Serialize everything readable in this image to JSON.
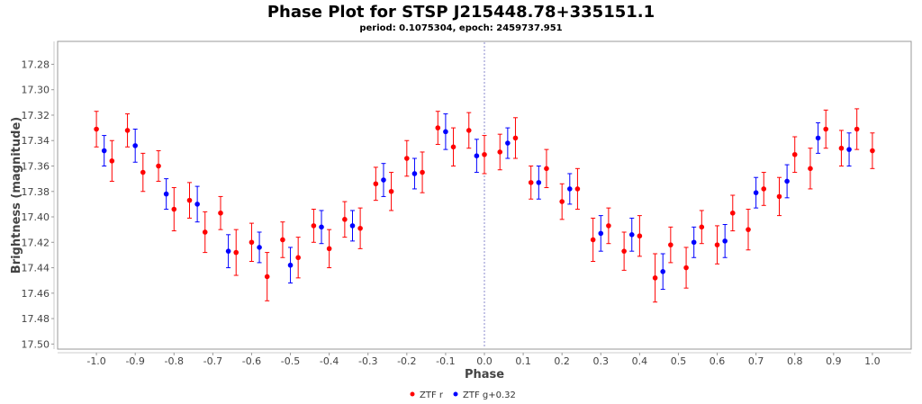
{
  "chart_data": {
    "type": "scatter",
    "title": "Phase Plot for STSP J215448.78+335151.1",
    "subtitle": "period: 0.1075304, epoch: 2459737.951",
    "xlabel": "Phase",
    "ylabel": "Brightness (magnitude)",
    "xlim": [
      -1.1,
      1.1
    ],
    "ylim": [
      17.262,
      17.504
    ],
    "y_inverted": true,
    "xticks": [
      "-1.0",
      "-0.9",
      "-0.8",
      "-0.7",
      "-0.6",
      "-0.5",
      "-0.4",
      "-0.3",
      "-0.2",
      "-0.1",
      "0.0",
      "0.1",
      "0.2",
      "0.3",
      "0.4",
      "0.5",
      "0.6",
      "0.7",
      "0.8",
      "0.9",
      "1.0"
    ],
    "yticks": [
      "17.28",
      "17.30",
      "17.32",
      "17.34",
      "17.36",
      "17.38",
      "17.40",
      "17.42",
      "17.44",
      "17.46",
      "17.48",
      "17.50"
    ],
    "grid": false,
    "reference_line_x": 0.0,
    "legend_position": "bottom-center",
    "series": [
      {
        "name": "ZTF r",
        "color": "#ff0000",
        "points": [
          [
            -1.0,
            17.331,
            0.014
          ],
          [
            -0.96,
            17.356,
            0.016
          ],
          [
            -0.92,
            17.332,
            0.013
          ],
          [
            -0.88,
            17.365,
            0.015
          ],
          [
            -0.84,
            17.36,
            0.012
          ],
          [
            -0.8,
            17.394,
            0.017
          ],
          [
            -0.76,
            17.387,
            0.014
          ],
          [
            -0.72,
            17.412,
            0.016
          ],
          [
            -0.68,
            17.397,
            0.013
          ],
          [
            -0.64,
            17.428,
            0.018
          ],
          [
            -0.6,
            17.42,
            0.015
          ],
          [
            -0.56,
            17.447,
            0.019
          ],
          [
            -0.52,
            17.418,
            0.014
          ],
          [
            -0.48,
            17.432,
            0.016
          ],
          [
            -0.44,
            17.407,
            0.013
          ],
          [
            -0.4,
            17.425,
            0.015
          ],
          [
            -0.36,
            17.402,
            0.014
          ],
          [
            -0.32,
            17.409,
            0.016
          ],
          [
            -0.28,
            17.374,
            0.013
          ],
          [
            -0.24,
            17.38,
            0.015
          ],
          [
            -0.2,
            17.354,
            0.014
          ],
          [
            -0.16,
            17.365,
            0.016
          ],
          [
            -0.12,
            17.33,
            0.013
          ],
          [
            -0.08,
            17.345,
            0.015
          ],
          [
            -0.04,
            17.332,
            0.014
          ],
          [
            0.0,
            17.351,
            0.015
          ],
          [
            0.04,
            17.349,
            0.014
          ],
          [
            0.08,
            17.338,
            0.016
          ],
          [
            0.12,
            17.373,
            0.013
          ],
          [
            0.16,
            17.362,
            0.015
          ],
          [
            0.2,
            17.388,
            0.014
          ],
          [
            0.24,
            17.378,
            0.016
          ],
          [
            0.28,
            17.418,
            0.017
          ],
          [
            0.32,
            17.407,
            0.014
          ],
          [
            0.36,
            17.427,
            0.015
          ],
          [
            0.4,
            17.415,
            0.016
          ],
          [
            0.44,
            17.448,
            0.019
          ],
          [
            0.48,
            17.422,
            0.014
          ],
          [
            0.52,
            17.44,
            0.016
          ],
          [
            0.56,
            17.408,
            0.013
          ],
          [
            0.6,
            17.422,
            0.015
          ],
          [
            0.64,
            17.397,
            0.014
          ],
          [
            0.68,
            17.41,
            0.016
          ],
          [
            0.72,
            17.378,
            0.013
          ],
          [
            0.76,
            17.384,
            0.015
          ],
          [
            0.8,
            17.351,
            0.014
          ],
          [
            0.84,
            17.362,
            0.016
          ],
          [
            0.88,
            17.331,
            0.015
          ],
          [
            0.92,
            17.346,
            0.014
          ],
          [
            0.96,
            17.331,
            0.016
          ],
          [
            1.0,
            17.348,
            0.014
          ]
        ]
      },
      {
        "name": "ZTF g+0.32",
        "color": "#0000ff",
        "points": [
          [
            -0.98,
            17.348,
            0.012
          ],
          [
            -0.9,
            17.344,
            0.013
          ],
          [
            -0.82,
            17.382,
            0.012
          ],
          [
            -0.74,
            17.39,
            0.014
          ],
          [
            -0.66,
            17.427,
            0.013
          ],
          [
            -0.58,
            17.424,
            0.012
          ],
          [
            -0.5,
            17.438,
            0.014
          ],
          [
            -0.42,
            17.408,
            0.013
          ],
          [
            -0.34,
            17.407,
            0.012
          ],
          [
            -0.26,
            17.371,
            0.013
          ],
          [
            -0.18,
            17.366,
            0.012
          ],
          [
            -0.1,
            17.333,
            0.014
          ],
          [
            -0.02,
            17.352,
            0.013
          ],
          [
            0.06,
            17.342,
            0.012
          ],
          [
            0.14,
            17.373,
            0.013
          ],
          [
            0.22,
            17.378,
            0.012
          ],
          [
            0.3,
            17.413,
            0.014
          ],
          [
            0.38,
            17.414,
            0.013
          ],
          [
            0.46,
            17.443,
            0.014
          ],
          [
            0.54,
            17.42,
            0.012
          ],
          [
            0.62,
            17.419,
            0.013
          ],
          [
            0.7,
            17.381,
            0.012
          ],
          [
            0.78,
            17.372,
            0.013
          ],
          [
            0.86,
            17.338,
            0.012
          ],
          [
            0.94,
            17.347,
            0.013
          ]
        ]
      }
    ]
  }
}
